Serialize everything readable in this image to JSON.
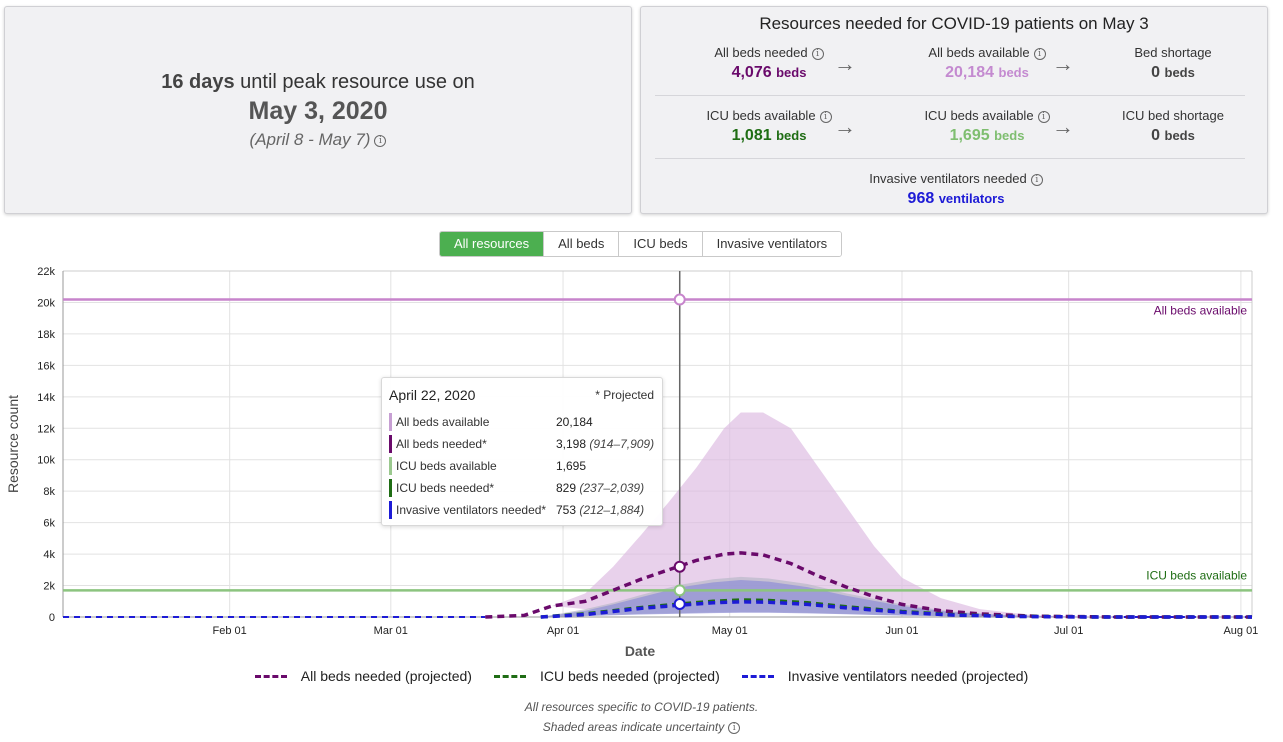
{
  "peak": {
    "days": "16 days",
    "until_text": "until peak resource use on",
    "date": "May 3, 2020",
    "range": "(April 8 - May 7)"
  },
  "resources": {
    "title": "Resources needed for COVID-19 patients on May 3",
    "all_beds_needed": {
      "label": "All beds needed",
      "value": "4,076",
      "unit": "beds"
    },
    "all_beds_available": {
      "label": "All beds available",
      "value": "20,184",
      "unit": "beds"
    },
    "bed_shortage": {
      "label": "Bed shortage",
      "value": "0",
      "unit": "beds"
    },
    "icu_beds_needed": {
      "label": "ICU beds available",
      "value": "1,081",
      "unit": "beds"
    },
    "icu_beds_available": {
      "label": "ICU beds available",
      "value": "1,695",
      "unit": "beds"
    },
    "icu_bed_shortage": {
      "label": "ICU bed shortage",
      "value": "0",
      "unit": "beds"
    },
    "ventilators": {
      "label": "Invasive ventilators needed",
      "value": "968",
      "unit": "ventilators"
    }
  },
  "tabs": [
    "All resources",
    "All beds",
    "ICU beds",
    "Invasive ventilators"
  ],
  "active_tab": "All resources",
  "tooltip": {
    "date": "April 22, 2020",
    "projected": "* Projected",
    "rows": [
      {
        "label": "All beds available",
        "value": "20,184",
        "range": "",
        "color": "#c79fd3"
      },
      {
        "label": "All beds needed*",
        "value": "3,198",
        "range": "(914–7,909)",
        "color": "#6a0a6b"
      },
      {
        "label": "ICU beds available",
        "value": "1,695",
        "range": "",
        "color": "#9bc98f"
      },
      {
        "label": "ICU beds needed*",
        "value": "829",
        "range": "(237–2,039)",
        "color": "#1f6d14"
      },
      {
        "label": "Invasive ventilators needed*",
        "value": "753",
        "range": "(212–1,884)",
        "color": "#1d1bd6"
      }
    ]
  },
  "chart_data": {
    "type": "area",
    "xlabel": "Date",
    "ylabel": "Resource count",
    "x_ticks": [
      "Feb 01",
      "Mar 01",
      "Apr 01",
      "May 01",
      "Jun 01",
      "Jul 01",
      "Aug 01"
    ],
    "x_tick_dates": [
      "2020-02-01",
      "2020-03-01",
      "2020-04-01",
      "2020-05-01",
      "2020-06-01",
      "2020-07-01",
      "2020-08-01"
    ],
    "x_range": [
      "2020-01-02",
      "2020-08-03"
    ],
    "y_ticks": [
      "0",
      "2k",
      "4k",
      "6k",
      "8k",
      "10k",
      "12k",
      "14k",
      "16k",
      "18k",
      "20k",
      "22k"
    ],
    "ylim": [
      0,
      22000
    ],
    "grid": true,
    "hover_date": "2020-04-22",
    "reference_lines": [
      {
        "name": "All beds available",
        "value": 20184,
        "color": "#c784cc",
        "label_color": "#6a0a6b"
      },
      {
        "name": "ICU beds available",
        "value": 1695,
        "color": "#8cc47f",
        "label_color": "#1f6d14"
      }
    ],
    "series": [
      {
        "name": "All beds needed (projected)",
        "color": "#6a0a6b",
        "band_color": "#dcb8e0",
        "x": [
          "2020-03-18",
          "2020-03-25",
          "2020-03-30",
          "2020-04-05",
          "2020-04-10",
          "2020-04-15",
          "2020-04-20",
          "2020-04-25",
          "2020-04-30",
          "2020-05-03",
          "2020-05-07",
          "2020-05-12",
          "2020-05-17",
          "2020-05-22",
          "2020-05-27",
          "2020-06-01",
          "2020-06-08",
          "2020-06-15",
          "2020-06-25",
          "2020-07-10",
          "2020-08-03"
        ],
        "values": [
          0,
          100,
          700,
          1000,
          1700,
          2400,
          3000,
          3600,
          4000,
          4076,
          3950,
          3400,
          2600,
          1900,
          1300,
          800,
          400,
          200,
          50,
          0,
          0
        ],
        "lower": [
          0,
          100,
          700,
          500,
          500,
          700,
          850,
          1000,
          1100,
          1150,
          1100,
          950,
          750,
          550,
          380,
          250,
          130,
          60,
          10,
          0,
          0
        ],
        "upper": [
          0,
          100,
          700,
          1500,
          3200,
          5200,
          7300,
          9500,
          12000,
          13000,
          13000,
          12000,
          9500,
          7000,
          4500,
          2500,
          1200,
          500,
          100,
          0,
          0
        ]
      },
      {
        "name": "ICU beds needed (projected)",
        "color": "#1f6d14",
        "band_color": "#b9b9c9",
        "x": [
          "2020-03-28",
          "2020-04-05",
          "2020-04-10",
          "2020-04-15",
          "2020-04-22",
          "2020-04-28",
          "2020-05-03",
          "2020-05-08",
          "2020-05-15",
          "2020-05-22",
          "2020-06-01",
          "2020-06-10",
          "2020-06-20",
          "2020-07-05",
          "2020-08-03"
        ],
        "values": [
          0,
          200,
          400,
          600,
          829,
          1000,
          1081,
          1050,
          900,
          650,
          350,
          150,
          50,
          0,
          0
        ],
        "lower": [
          0,
          80,
          140,
          200,
          237,
          290,
          310,
          300,
          260,
          190,
          100,
          45,
          15,
          0,
          0
        ],
        "upper": [
          0,
          500,
          900,
          1400,
          2039,
          2400,
          2550,
          2450,
          2100,
          1500,
          800,
          350,
          120,
          0,
          0
        ]
      },
      {
        "name": "Invasive ventilators needed (projected)",
        "color": "#1d1bd6",
        "band_color": "#8e8fd6",
        "x": [
          "2020-03-28",
          "2020-04-05",
          "2020-04-10",
          "2020-04-15",
          "2020-04-22",
          "2020-04-28",
          "2020-05-03",
          "2020-05-08",
          "2020-05-15",
          "2020-05-22",
          "2020-06-01",
          "2020-06-10",
          "2020-06-20",
          "2020-07-05",
          "2020-08-03"
        ],
        "values": [
          0,
          150,
          350,
          550,
          753,
          900,
          968,
          940,
          800,
          580,
          300,
          130,
          40,
          0,
          0
        ],
        "lower": [
          0,
          60,
          110,
          160,
          212,
          250,
          275,
          265,
          230,
          170,
          90,
          40,
          12,
          0,
          0
        ],
        "upper": [
          0,
          400,
          800,
          1250,
          1884,
          2200,
          2350,
          2250,
          1900,
          1350,
          700,
          300,
          100,
          0,
          0
        ]
      }
    ]
  },
  "legend": [
    {
      "label": "All beds needed (projected)",
      "color": "#6a0a6b"
    },
    {
      "label": "ICU beds needed (projected)",
      "color": "#1f6d14"
    },
    {
      "label": "Invasive ventilators needed (projected)",
      "color": "#1d1bd6"
    }
  ],
  "footnotes": {
    "line1": "All resources specific to COVID-19 patients.",
    "line2": "Shaded areas indicate uncertainty"
  }
}
